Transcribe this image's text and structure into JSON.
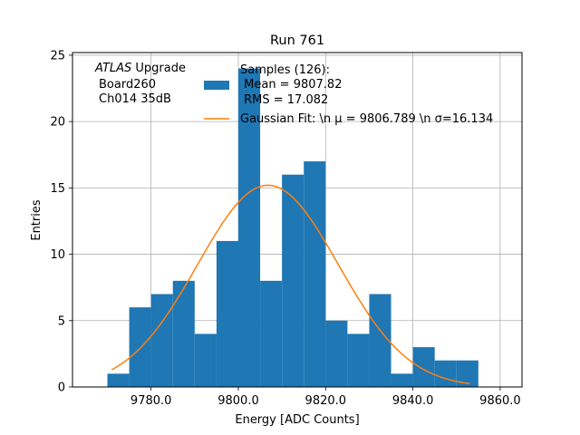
{
  "chart_data": {
    "type": "bar",
    "title": "Run 761",
    "xlabel": "Energy [ADC Counts]",
    "ylabel": "Entries",
    "xlim": [
      9762,
      9865
    ],
    "ylim": [
      0,
      25.2
    ],
    "x_ticks": [
      9780,
      9800,
      9820,
      9840,
      9860
    ],
    "x_tick_labels": [
      "9780.0",
      "9800.0",
      "9820.0",
      "9840.0",
      "9860.0"
    ],
    "y_ticks": [
      0,
      5,
      10,
      15,
      20,
      25
    ],
    "y_tick_labels": [
      "0",
      "5",
      "10",
      "15",
      "20",
      "25"
    ],
    "grid": true,
    "annotation": {
      "atlas": "ATLAS",
      "upgrade": " Upgrade",
      "line2": "Board260",
      "line3": "Ch014 35dB"
    },
    "histogram": {
      "name": "Samples (126):",
      "bin_edges": [
        9770,
        9775,
        9780,
        9785,
        9790,
        9795,
        9800,
        9805,
        9810,
        9815,
        9820,
        9825,
        9830,
        9835,
        9840,
        9845,
        9850,
        9855
      ],
      "counts": [
        1,
        6,
        7,
        8,
        4,
        11,
        24,
        8,
        16,
        17,
        5,
        4,
        7,
        1,
        3,
        2,
        2
      ],
      "color": "#1f77b4"
    },
    "fit": {
      "name": "Gaussian Fit",
      "mu": 9806.789,
      "sigma": 16.134,
      "amplitude": 15.2,
      "x_range": [
        9771,
        9853
      ],
      "color": "#ff7f0e"
    },
    "legend": {
      "position": "top-center",
      "hist_lines": [
        "Samples (126):",
        " Mean = 9807.82",
        " RMS = 17.082"
      ],
      "fit_line": "Gaussian Fit: \\n μ = 9806.789 \\n σ=16.134"
    }
  }
}
